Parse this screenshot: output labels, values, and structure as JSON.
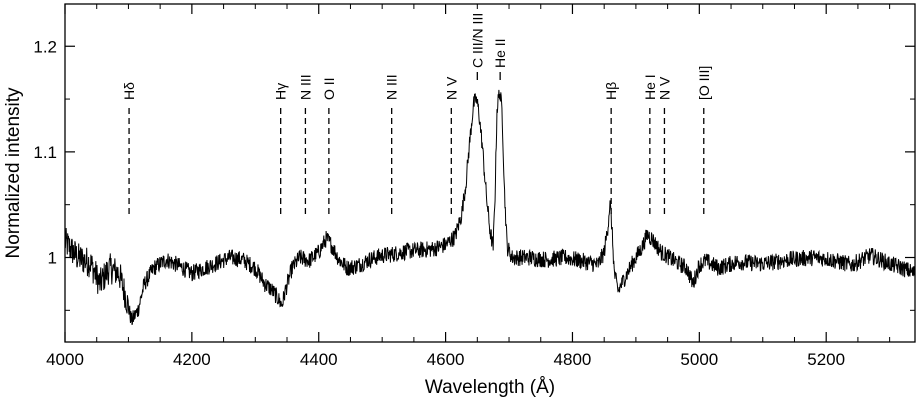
{
  "chart_data": {
    "type": "line",
    "title": "",
    "xlabel": "Wavelength (Å)",
    "ylabel": "Normalized intensity",
    "xlim": [
      4000,
      5340
    ],
    "ylim": [
      0.92,
      1.24
    ],
    "x_ticks": [
      4000,
      4200,
      4400,
      4600,
      4800,
      5000,
      5200
    ],
    "x_tick_labels": [
      "4000",
      "4200",
      "4400",
      "4600",
      "4800",
      "5000",
      "5200"
    ],
    "y_ticks": [
      1.0,
      1.1,
      1.2
    ],
    "y_tick_labels": [
      "1",
      "1.1",
      "1.2"
    ],
    "grid": false,
    "series": [
      {
        "color": "#000000",
        "noise": 0.008,
        "points": [
          [
            4000,
            1.015
          ],
          [
            4020,
            1.0
          ],
          [
            4040,
            0.995
          ],
          [
            4055,
            0.975
          ],
          [
            4070,
            0.99
          ],
          [
            4085,
            0.985
          ],
          [
            4095,
            0.965
          ],
          [
            4105,
            0.94
          ],
          [
            4115,
            0.95
          ],
          [
            4125,
            0.975
          ],
          [
            4140,
            0.99
          ],
          [
            4160,
            0.998
          ],
          [
            4180,
            0.992
          ],
          [
            4200,
            0.985
          ],
          [
            4220,
            0.99
          ],
          [
            4240,
            0.995
          ],
          [
            4260,
            1.0
          ],
          [
            4280,
            0.998
          ],
          [
            4300,
            0.99
          ],
          [
            4315,
            0.975
          ],
          [
            4325,
            0.97
          ],
          [
            4335,
            0.962
          ],
          [
            4342,
            0.955
          ],
          [
            4348,
            0.97
          ],
          [
            4358,
            0.99
          ],
          [
            4370,
            1.0
          ],
          [
            4385,
            0.997
          ],
          [
            4400,
            1.005
          ],
          [
            4412,
            1.018
          ],
          [
            4420,
            1.012
          ],
          [
            4432,
            0.998
          ],
          [
            4445,
            0.99
          ],
          [
            4460,
            0.992
          ],
          [
            4480,
            0.998
          ],
          [
            4500,
            1.002
          ],
          [
            4515,
            1.003
          ],
          [
            4540,
            1.006
          ],
          [
            4560,
            1.007
          ],
          [
            4580,
            1.008
          ],
          [
            4600,
            1.012
          ],
          [
            4615,
            1.02
          ],
          [
            4625,
            1.04
          ],
          [
            4632,
            1.07
          ],
          [
            4638,
            1.11
          ],
          [
            4644,
            1.145
          ],
          [
            4648,
            1.15
          ],
          [
            4652,
            1.14
          ],
          [
            4658,
            1.105
          ],
          [
            4664,
            1.06
          ],
          [
            4670,
            1.025
          ],
          [
            4675,
            1.01
          ],
          [
            4678,
            1.06
          ],
          [
            4681,
            1.14
          ],
          [
            4685,
            1.158
          ],
          [
            4689,
            1.14
          ],
          [
            4693,
            1.06
          ],
          [
            4697,
            1.01
          ],
          [
            4705,
            1.0
          ],
          [
            4730,
            1.0
          ],
          [
            4760,
            0.998
          ],
          [
            4790,
            1.0
          ],
          [
            4820,
            0.996
          ],
          [
            4840,
            0.993
          ],
          [
            4850,
            1.005
          ],
          [
            4856,
            1.03
          ],
          [
            4859,
            1.052
          ],
          [
            4862,
            1.03
          ],
          [
            4866,
            0.985
          ],
          [
            4872,
            0.968
          ],
          [
            4880,
            0.978
          ],
          [
            4895,
            0.995
          ],
          [
            4910,
            1.01
          ],
          [
            4918,
            1.022
          ],
          [
            4925,
            1.018
          ],
          [
            4940,
            1.005
          ],
          [
            4960,
            0.997
          ],
          [
            4980,
            0.99
          ],
          [
            4990,
            0.975
          ],
          [
            5000,
            0.993
          ],
          [
            5010,
            0.997
          ],
          [
            5030,
            0.99
          ],
          [
            5060,
            0.996
          ],
          [
            5100,
            0.994
          ],
          [
            5140,
            0.998
          ],
          [
            5180,
            1.0
          ],
          [
            5200,
            0.999
          ],
          [
            5240,
            0.993
          ],
          [
            5270,
            1.002
          ],
          [
            5300,
            0.994
          ],
          [
            5320,
            0.99
          ],
          [
            5340,
            0.985
          ]
        ]
      }
    ],
    "annotations": [
      {
        "x": 4101,
        "label": "Hδ"
      },
      {
        "x": 4340,
        "label": "Hγ"
      },
      {
        "x": 4379,
        "label": "N III"
      },
      {
        "x": 4416,
        "label": "O II"
      },
      {
        "x": 4515,
        "label": "N III"
      },
      {
        "x": 4609,
        "label": "N V"
      },
      {
        "x": 4650,
        "label": "C III/N III"
      },
      {
        "x": 4686,
        "label": "He II"
      },
      {
        "x": 4861,
        "label": "Hβ"
      },
      {
        "x": 4922,
        "label": "He I"
      },
      {
        "x": 4945,
        "label": "N V"
      },
      {
        "x": 5007,
        "label": "[O III]"
      }
    ]
  }
}
